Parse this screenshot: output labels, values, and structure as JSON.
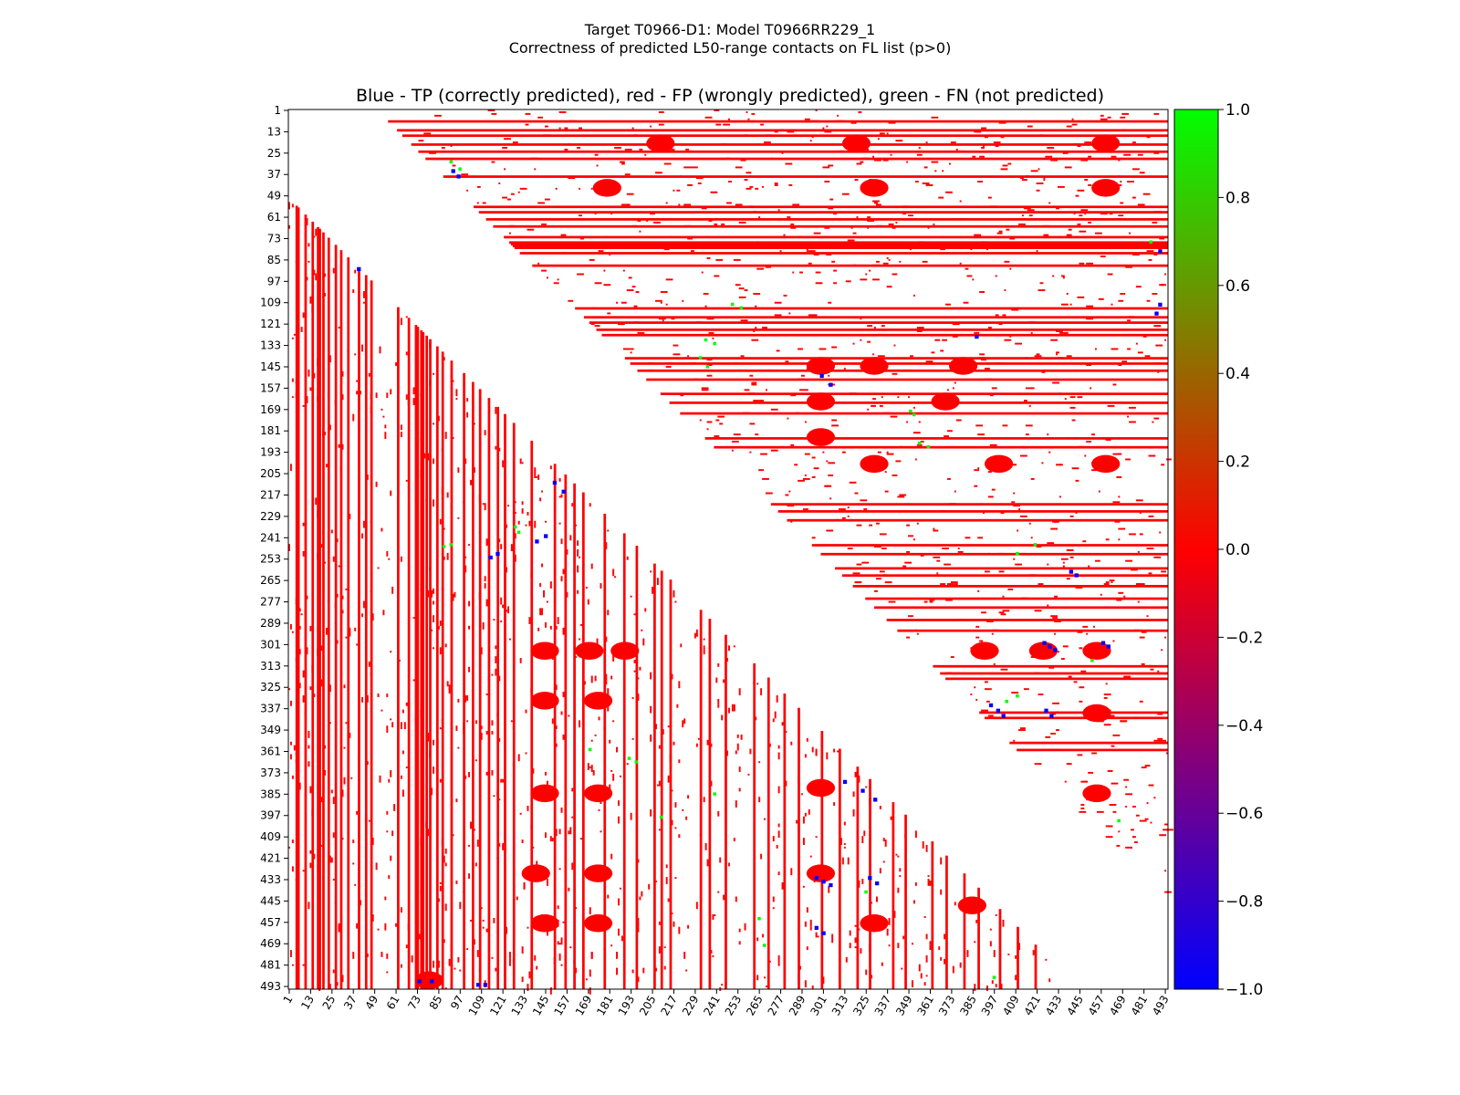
{
  "chart_data": {
    "type": "heatmap",
    "title": "Target T0966-D1: Model T0966RR229_1",
    "subtitle": "Correctness of predicted L50-range contacts on FL list (p>0)",
    "plot_title": "Blue - TP (correctly predicted), red - FP (wrongly predicted), green - FN (not predicted)",
    "xlabel": "",
    "ylabel": "",
    "axis_range": [
      1,
      494
    ],
    "x_ticks": [
      "1",
      "13",
      "25",
      "37",
      "49",
      "61",
      "73",
      "85",
      "97",
      "109",
      "121",
      "133",
      "145",
      "157",
      "169",
      "181",
      "193",
      "205",
      "217",
      "229",
      "241",
      "253",
      "265",
      "277",
      "289",
      "301",
      "313",
      "325",
      "337",
      "349",
      "361",
      "373",
      "385",
      "397",
      "409",
      "421",
      "433",
      "445",
      "457",
      "469",
      "481",
      "493"
    ],
    "y_ticks": [
      "1",
      "13",
      "25",
      "37",
      "49",
      "61",
      "73",
      "85",
      "97",
      "109",
      "121",
      "133",
      "145",
      "157",
      "169",
      "181",
      "193",
      "205",
      "217",
      "229",
      "241",
      "253",
      "265",
      "277",
      "289",
      "301",
      "313",
      "325",
      "337",
      "349",
      "361",
      "373",
      "385",
      "397",
      "409",
      "421",
      "433",
      "445",
      "457",
      "469",
      "481",
      "493"
    ],
    "colorbar": {
      "min": -1.0,
      "max": 1.0,
      "ticks": [
        "1.0",
        "0.8",
        "0.6",
        "0.4",
        "0.2",
        "0.0",
        "−0.2",
        "−0.4",
        "−0.6",
        "−0.8",
        "−1.0"
      ],
      "colormap": [
        "#0000ff",
        "#ff0000",
        "#00ff00"
      ]
    },
    "colors": {
      "tp": "#0000ff",
      "fp": "#ff0000",
      "fn": "#00ff00"
    },
    "min_separation": 50,
    "dense_fp_rows": [
      7,
      12,
      15,
      20,
      24,
      28,
      38,
      55,
      58,
      62,
      66,
      72,
      75,
      76,
      77,
      78,
      81,
      88,
      112,
      117,
      120,
      124,
      127,
      140,
      143,
      147,
      152,
      160,
      165,
      171,
      185,
      190,
      222,
      226,
      231,
      245,
      250,
      258,
      262,
      268,
      275,
      280,
      287,
      293,
      313,
      317,
      320,
      339,
      342,
      356,
      360
    ],
    "dense_fp_cols": [
      5,
      6,
      10,
      14,
      17,
      18,
      20,
      23,
      27,
      30,
      34,
      40,
      44,
      47,
      62,
      68,
      72,
      73,
      75,
      76,
      78,
      80,
      84,
      87,
      92,
      99,
      104,
      108,
      113,
      118,
      122,
      127,
      137,
      150,
      156,
      161,
      166,
      178,
      189,
      196,
      206,
      210,
      215,
      232,
      237,
      246,
      262,
      270,
      279,
      287,
      300,
      310,
      320,
      327,
      340,
      347,
      362,
      370,
      380,
      388,
      400,
      410,
      420
    ],
    "fp_blobs": [
      {
        "row": 20,
        "col": 210
      },
      {
        "row": 20,
        "col": 320
      },
      {
        "row": 20,
        "col": 460
      },
      {
        "row": 45,
        "col": 180
      },
      {
        "row": 45,
        "col": 330
      },
      {
        "row": 45,
        "col": 460
      },
      {
        "row": 145,
        "col": 300
      },
      {
        "row": 145,
        "col": 330
      },
      {
        "row": 145,
        "col": 380
      },
      {
        "row": 165,
        "col": 300
      },
      {
        "row": 165,
        "col": 370
      },
      {
        "row": 185,
        "col": 300
      },
      {
        "row": 200,
        "col": 330
      },
      {
        "row": 200,
        "col": 400
      },
      {
        "row": 200,
        "col": 460
      },
      {
        "row": 305,
        "col": 392
      },
      {
        "row": 305,
        "col": 425
      },
      {
        "row": 305,
        "col": 455
      },
      {
        "row": 340,
        "col": 455
      },
      {
        "row": 385,
        "col": 455
      },
      {
        "row": 305,
        "col": 145
      },
      {
        "row": 305,
        "col": 170
      },
      {
        "row": 305,
        "col": 190
      },
      {
        "row": 333,
        "col": 145
      },
      {
        "row": 333,
        "col": 175
      },
      {
        "row": 385,
        "col": 145
      },
      {
        "row": 385,
        "col": 175
      },
      {
        "row": 430,
        "col": 140
      },
      {
        "row": 430,
        "col": 175
      },
      {
        "row": 458,
        "col": 145
      },
      {
        "row": 458,
        "col": 175
      },
      {
        "row": 382,
        "col": 300
      },
      {
        "row": 430,
        "col": 300
      },
      {
        "row": 458,
        "col": 330
      },
      {
        "row": 448,
        "col": 385
      },
      {
        "row": 490,
        "col": 80
      }
    ],
    "tp_points": [
      [
        35,
        93
      ],
      [
        38,
        96
      ],
      [
        80,
        490
      ],
      [
        110,
        490
      ],
      [
        115,
        488
      ],
      [
        128,
        387
      ],
      [
        150,
        300
      ],
      [
        155,
        305
      ],
      [
        300,
        425
      ],
      [
        302,
        428
      ],
      [
        304,
        431
      ],
      [
        300,
        458
      ],
      [
        302,
        461
      ],
      [
        335,
        395
      ],
      [
        338,
        399
      ],
      [
        341,
        402
      ],
      [
        338,
        426
      ],
      [
        341,
        429
      ],
      [
        260,
        440
      ],
      [
        262,
        443
      ],
      [
        90,
        40
      ],
      [
        210,
        150
      ],
      [
        215,
        155
      ],
      [
        240,
        145
      ],
      [
        243,
        140
      ],
      [
        250,
        118
      ],
      [
        252,
        114
      ],
      [
        378,
        313
      ],
      [
        383,
        323
      ],
      [
        388,
        330
      ],
      [
        432,
        297
      ],
      [
        434,
        301
      ],
      [
        436,
        305
      ],
      [
        432,
        327
      ],
      [
        435,
        331
      ],
      [
        460,
        297
      ],
      [
        463,
        301
      ],
      [
        490,
        74
      ],
      [
        490,
        81
      ],
      [
        492,
        107
      ],
      [
        492,
        111
      ]
    ],
    "fn_points": [
      [
        30,
        92
      ],
      [
        34,
        97
      ],
      [
        75,
        485
      ],
      [
        110,
        250
      ],
      [
        112,
        255
      ],
      [
        130,
        235
      ],
      [
        132,
        240
      ],
      [
        140,
        232
      ],
      [
        145,
        236
      ],
      [
        170,
        350
      ],
      [
        172,
        352
      ],
      [
        188,
        355
      ],
      [
        190,
        360
      ],
      [
        245,
        420
      ],
      [
        250,
        410
      ],
      [
        310,
        452
      ],
      [
        330,
        410
      ],
      [
        333,
        404
      ],
      [
        365,
        192
      ],
      [
        367,
        196
      ],
      [
        360,
        170
      ],
      [
        235,
        128
      ],
      [
        238,
        130
      ],
      [
        246,
        88
      ],
      [
        245,
        92
      ],
      [
        385,
        240
      ],
      [
        455,
        265
      ],
      [
        470,
        268
      ],
      [
        398,
        210
      ],
      [
        440,
        325
      ],
      [
        488,
        397
      ],
      [
        400,
        467
      ]
    ]
  }
}
